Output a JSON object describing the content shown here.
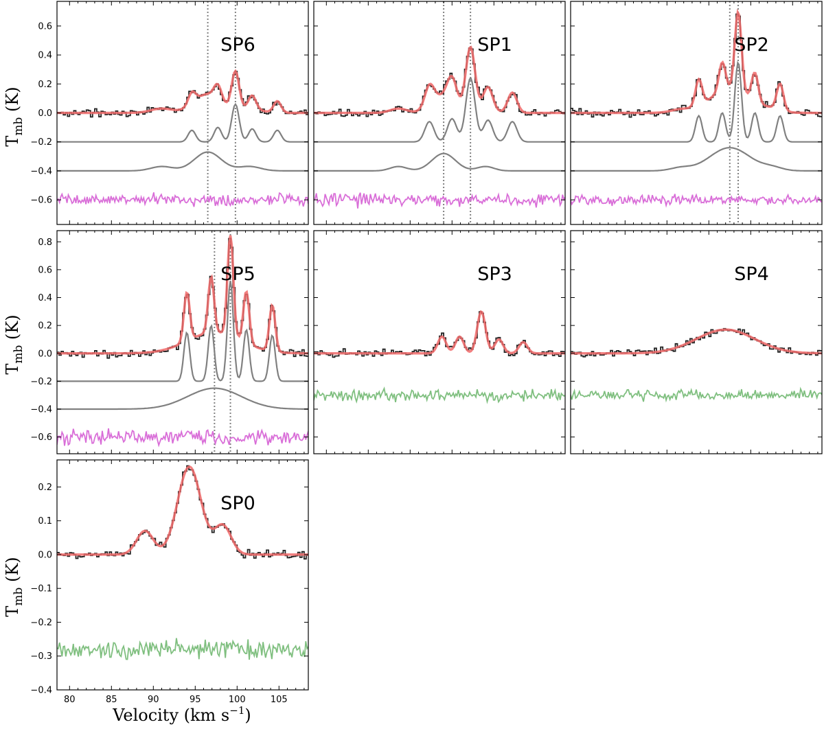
{
  "figure": {
    "ylabel_main": "T",
    "ylabel_sub": "mb",
    "ylabel_unit": " (K)",
    "xlabel_main": "Velocity (km s",
    "xlabel_sup": "−1",
    "xlabel_end": ")"
  },
  "chart_data": [
    {
      "type": "line",
      "label": "SP6",
      "xlim": [
        78.5,
        108.5
      ],
      "ylim": [
        -0.77,
        0.77
      ],
      "yticks": [
        -0.6,
        -0.4,
        -0.2,
        0.0,
        0.2,
        0.4,
        0.6
      ],
      "ytick_labels": [
        "−0.6",
        "−0.4",
        "−0.2",
        "0.0",
        "0.2",
        "0.4",
        "0.6"
      ],
      "vlines": [
        96.5,
        99.8
      ],
      "components": [
        {
          "center": 94.6,
          "amp": 0.08,
          "sigma": 0.45,
          "offset": -0.2
        },
        {
          "center": 97.7,
          "amp": 0.1,
          "sigma": 0.45,
          "offset": -0.2
        },
        {
          "center": 99.8,
          "amp": 0.26,
          "sigma": 0.45,
          "offset": -0.2
        },
        {
          "center": 101.8,
          "amp": 0.09,
          "sigma": 0.45,
          "offset": -0.2
        },
        {
          "center": 104.8,
          "amp": 0.08,
          "sigma": 0.45,
          "offset": -0.2
        },
        {
          "center": 91.0,
          "amp": 0.03,
          "sigma": 1.3,
          "offset": -0.4
        },
        {
          "center": 96.5,
          "amp": 0.13,
          "sigma": 1.6,
          "offset": -0.4
        },
        {
          "center": 101.5,
          "amp": 0.03,
          "sigma": 1.3,
          "offset": -0.4
        }
      ],
      "residual_color": "#d96ed8",
      "residual_offset": -0.6,
      "residual_rms": 0.025
    },
    {
      "type": "line",
      "label": "SP1",
      "xlim": [
        78.5,
        108.5
      ],
      "ylim": [
        -0.77,
        0.77
      ],
      "yticks": [
        -0.6,
        -0.4,
        -0.2,
        0.0,
        0.2,
        0.4,
        0.6
      ],
      "ytick_labels": [],
      "vlines": [
        94.0,
        97.2
      ],
      "components": [
        {
          "center": 92.3,
          "amp": 0.14,
          "sigma": 0.55,
          "offset": -0.2
        },
        {
          "center": 95.0,
          "amp": 0.16,
          "sigma": 0.55,
          "offset": -0.2
        },
        {
          "center": 97.2,
          "amp": 0.44,
          "sigma": 0.55,
          "offset": -0.2
        },
        {
          "center": 99.3,
          "amp": 0.15,
          "sigma": 0.55,
          "offset": -0.2
        },
        {
          "center": 102.2,
          "amp": 0.14,
          "sigma": 0.55,
          "offset": -0.2
        },
        {
          "center": 88.6,
          "amp": 0.03,
          "sigma": 1.0,
          "offset": -0.4
        },
        {
          "center": 94.0,
          "amp": 0.12,
          "sigma": 1.4,
          "offset": -0.4
        },
        {
          "center": 99.0,
          "amp": 0.03,
          "sigma": 1.0,
          "offset": -0.4
        }
      ],
      "residual_color": "#d96ed8",
      "residual_offset": -0.6,
      "residual_rms": 0.028
    },
    {
      "type": "line",
      "label": "SP2",
      "xlim": [
        78.5,
        108.5
      ],
      "ylim": [
        -0.77,
        0.77
      ],
      "yticks": [
        -0.6,
        -0.4,
        -0.2,
        0.0,
        0.2,
        0.4,
        0.6
      ],
      "ytick_labels": [],
      "vlines": [
        97.5,
        98.5
      ],
      "components": [
        {
          "center": 93.8,
          "amp": 0.18,
          "sigma": 0.4,
          "offset": -0.2
        },
        {
          "center": 96.6,
          "amp": 0.2,
          "sigma": 0.4,
          "offset": -0.2
        },
        {
          "center": 98.5,
          "amp": 0.55,
          "sigma": 0.4,
          "offset": -0.2
        },
        {
          "center": 100.5,
          "amp": 0.2,
          "sigma": 0.4,
          "offset": -0.2
        },
        {
          "center": 103.5,
          "amp": 0.18,
          "sigma": 0.4,
          "offset": -0.2
        },
        {
          "center": 91.6,
          "amp": 0.02,
          "sigma": 1.2,
          "offset": -0.4
        },
        {
          "center": 97.5,
          "amp": 0.16,
          "sigma": 2.4,
          "offset": -0.4
        },
        {
          "center": 102.6,
          "amp": 0.02,
          "sigma": 1.2,
          "offset": -0.4
        }
      ],
      "residual_color": "#d96ed8",
      "residual_offset": -0.6,
      "residual_rms": 0.022
    },
    {
      "type": "line",
      "label": "SP5",
      "xlim": [
        78.5,
        108.5
      ],
      "ylim": [
        -0.72,
        0.88
      ],
      "yticks": [
        -0.6,
        -0.4,
        -0.2,
        0.0,
        0.2,
        0.4,
        0.6,
        0.8
      ],
      "ytick_labels": [
        "−0.6",
        "−0.4",
        "−0.2",
        "0.0",
        "0.2",
        "0.4",
        "0.6",
        "0.8"
      ],
      "vlines": [
        97.3,
        99.2
      ],
      "components": [
        {
          "center": 94.0,
          "amp": 0.35,
          "sigma": 0.35,
          "offset": -0.2
        },
        {
          "center": 96.9,
          "amp": 0.4,
          "sigma": 0.35,
          "offset": -0.2
        },
        {
          "center": 99.2,
          "amp": 0.72,
          "sigma": 0.35,
          "offset": -0.2
        },
        {
          "center": 101.1,
          "amp": 0.37,
          "sigma": 0.35,
          "offset": -0.2
        },
        {
          "center": 104.2,
          "amp": 0.33,
          "sigma": 0.35,
          "offset": -0.2
        },
        {
          "center": 97.3,
          "amp": 0.15,
          "sigma": 3.2,
          "offset": -0.4
        }
      ],
      "residual_color": "#d96ed8",
      "residual_offset": -0.6,
      "residual_rms": 0.035
    },
    {
      "type": "line",
      "label": "SP3",
      "xlim": [
        78.5,
        108.5
      ],
      "ylim": [
        -0.72,
        0.88
      ],
      "yticks": [
        -0.6,
        -0.4,
        -0.2,
        0.0,
        0.2,
        0.4,
        0.6,
        0.8
      ],
      "ytick_labels": [],
      "vlines": [],
      "components": [
        {
          "center": 93.8,
          "amp": 0.12,
          "sigma": 0.5,
          "offset": 0.0
        },
        {
          "center": 95.9,
          "amp": 0.12,
          "sigma": 0.5,
          "offset": 0.0
        },
        {
          "center": 98.5,
          "amp": 0.3,
          "sigma": 0.5,
          "offset": 0.0
        },
        {
          "center": 100.6,
          "amp": 0.1,
          "sigma": 0.5,
          "offset": 0.0
        },
        {
          "center": 103.5,
          "amp": 0.08,
          "sigma": 0.5,
          "offset": 0.0
        }
      ],
      "show_components": false,
      "residual_color": "#7fbf7f",
      "residual_offset": -0.3,
      "residual_rms": 0.025
    },
    {
      "type": "line",
      "label": "SP4",
      "xlim": [
        78.5,
        108.5
      ],
      "ylim": [
        -0.72,
        0.88
      ],
      "yticks": [
        -0.6,
        -0.4,
        -0.2,
        0.0,
        0.2,
        0.4,
        0.6,
        0.8
      ],
      "ytick_labels": [],
      "vlines": [],
      "components": [
        {
          "center": 97.0,
          "amp": 0.17,
          "sigma": 3.5,
          "offset": 0.0
        }
      ],
      "show_components": false,
      "residual_color": "#7fbf7f",
      "residual_offset": -0.3,
      "residual_rms": 0.022
    },
    {
      "type": "line",
      "label": "SP0",
      "xlim": [
        78.5,
        108.5
      ],
      "ylim": [
        -0.4,
        0.28
      ],
      "yticks": [
        -0.4,
        -0.3,
        -0.2,
        -0.1,
        0.0,
        0.1,
        0.2
      ],
      "ytick_labels": [
        "−0.4",
        "−0.3",
        "−0.2",
        "−0.1",
        "0.0",
        "0.1",
        "0.2"
      ],
      "xticks": [
        80,
        85,
        90,
        95,
        100,
        105
      ],
      "xtick_labels": [
        "80",
        "85",
        "90",
        "95",
        "100",
        "105"
      ],
      "vlines": [],
      "components": [
        {
          "center": 89.0,
          "amp": 0.07,
          "sigma": 1.0,
          "offset": 0.0
        },
        {
          "center": 94.3,
          "amp": 0.26,
          "sigma": 1.4,
          "offset": 0.0
        },
        {
          "center": 98.3,
          "amp": 0.085,
          "sigma": 1.0,
          "offset": 0.0
        }
      ],
      "show_components": false,
      "residual_color": "#7fbf7f",
      "residual_offset": -0.28,
      "residual_rms": 0.018
    }
  ],
  "colors": {
    "observed": "#222222",
    "fit": "#f06a6a",
    "component": "#808080",
    "vline": "#808080"
  }
}
